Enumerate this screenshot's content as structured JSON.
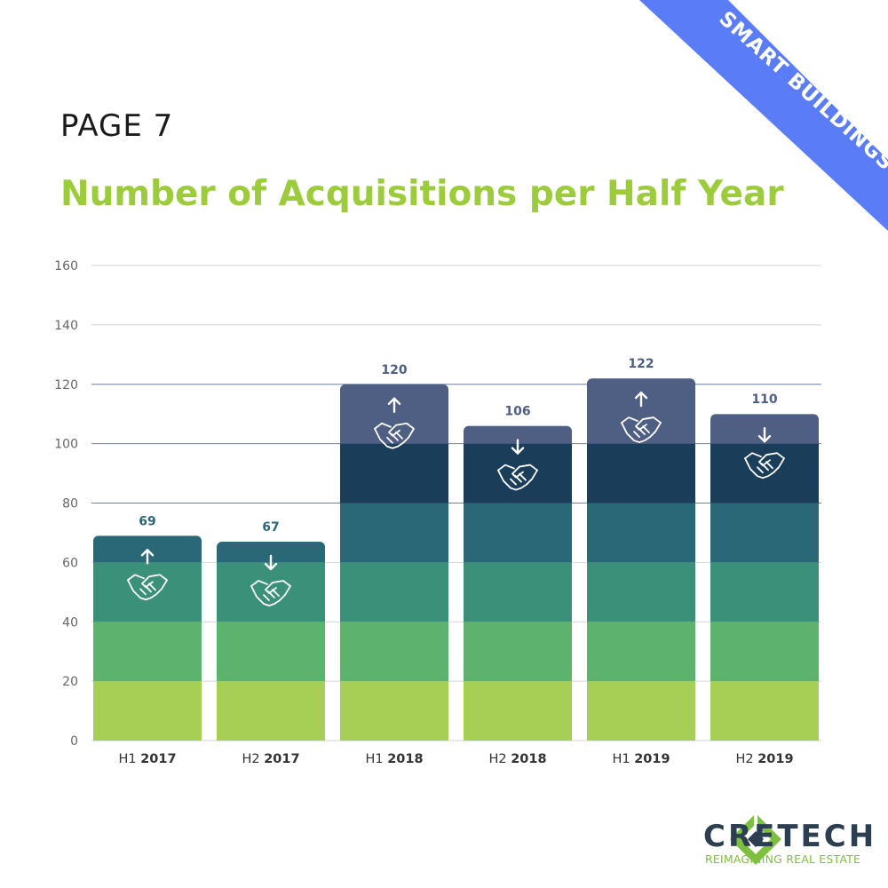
{
  "page_label": "PAGE 7",
  "banner": {
    "text": "SMART BUILDINGS",
    "color": "#5b7cf7",
    "icon": "building-icon"
  },
  "logo": {
    "name": "CRETECH",
    "tagline": "REIMAGINING REAL ESTATE",
    "icon": "cretech-logo-icon"
  },
  "chart_data": {
    "type": "bar",
    "title": "Number of Acquisitions per Half Year",
    "xlabel": "",
    "ylabel": "",
    "ylim": [
      0,
      160
    ],
    "yticks": [
      0,
      20,
      40,
      60,
      80,
      100,
      120,
      140,
      160
    ],
    "grid": true,
    "categories": [
      {
        "prefix": "H1",
        "year": "2017"
      },
      {
        "prefix": "H2",
        "year": "2017"
      },
      {
        "prefix": "H1",
        "year": "2018"
      },
      {
        "prefix": "H2",
        "year": "2018"
      },
      {
        "prefix": "H1",
        "year": "2019"
      },
      {
        "prefix": "H2",
        "year": "2019"
      }
    ],
    "values": [
      69,
      67,
      120,
      106,
      122,
      110
    ],
    "value_labels": [
      "69",
      "67",
      "120",
      "106",
      "122",
      "110"
    ],
    "trend": [
      "up",
      "down",
      "up",
      "down",
      "up",
      "down"
    ],
    "bar_icon": "handshake-icon",
    "bands": [
      {
        "from": 0,
        "to": 20,
        "color": "#a8cf55"
      },
      {
        "from": 20,
        "to": 40,
        "color": "#5db36d"
      },
      {
        "from": 40,
        "to": 60,
        "color": "#3a9079"
      },
      {
        "from": 60,
        "to": 80,
        "color": "#2b6877"
      },
      {
        "from": 80,
        "to": 100,
        "color": "#1a3e5a"
      },
      {
        "from": 100,
        "to": 160,
        "color": "#4f5f84"
      }
    ]
  }
}
